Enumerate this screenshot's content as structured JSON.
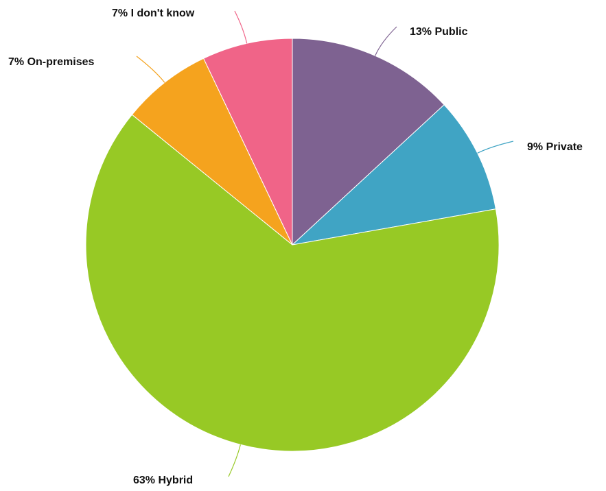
{
  "chart_data": {
    "type": "pie",
    "start": "top",
    "direction": "clockwise",
    "slices": [
      {
        "label": "13% Public",
        "value": 13,
        "color": "#7E6291"
      },
      {
        "label": "9% Private",
        "value": 9,
        "color": "#40A4C4"
      },
      {
        "label": "63% Hybrid",
        "value": 63,
        "color": "#97C925"
      },
      {
        "label": "7% On-premises",
        "value": 7,
        "color": "#F5A31E"
      },
      {
        "label": "7% I don't know",
        "value": 7,
        "color": "#F06488"
      }
    ]
  }
}
